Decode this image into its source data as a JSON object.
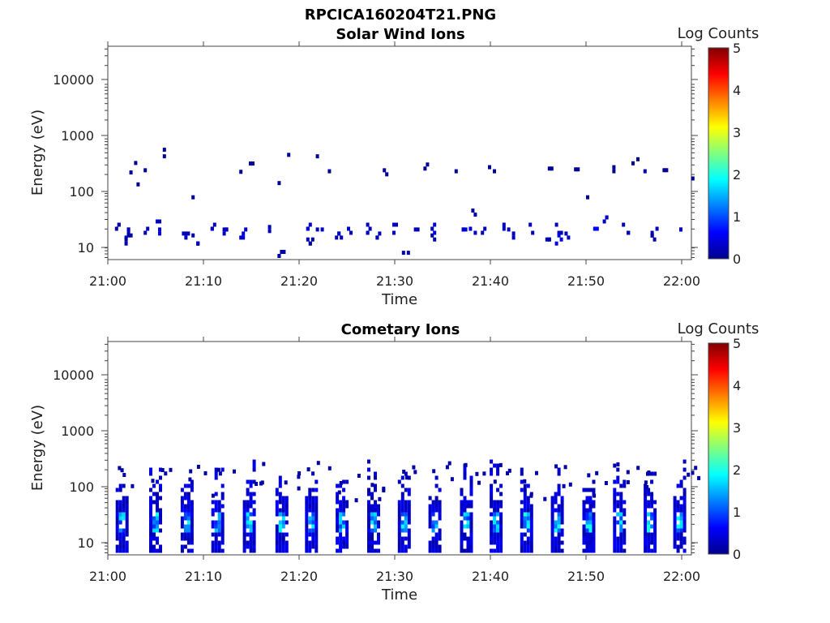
{
  "figure_title": "RPCICA160204T21.PNG",
  "chart_data": [
    {
      "type": "heatmap",
      "title": "Solar Wind Ions",
      "xlabel": "Time",
      "ylabel": "Energy (eV)",
      "x_tick_labels": [
        "21:00",
        "21:10",
        "21:20",
        "21:30",
        "21:40",
        "21:50",
        "22:00"
      ],
      "y_tick_labels": [
        "10",
        "100",
        "1000",
        "10000"
      ],
      "y_scale": "log",
      "xlim": [
        "21:00",
        "22:00"
      ],
      "ylim_eV": [
        5.5,
        45000
      ],
      "colorbar": {
        "label": "Log Counts",
        "range": [
          0,
          5
        ],
        "tick_labels": [
          "0",
          "1",
          "2",
          "3",
          "4",
          "5"
        ]
      },
      "cells": [
        {
          "t": "21:01",
          "e": 22,
          "v": 0.2
        },
        {
          "t": "21:02",
          "e": 18,
          "v": 0.3
        },
        {
          "t": "21:02",
          "e": 14,
          "v": 0.2
        },
        {
          "t": "21:02",
          "e": 200,
          "v": 0.1
        },
        {
          "t": "21:03",
          "e": 170,
          "v": 0.1
        },
        {
          "t": "21:03",
          "e": 420,
          "v": 0.1
        },
        {
          "t": "21:04",
          "e": 260,
          "v": 0.1
        },
        {
          "t": "21:04",
          "e": 22,
          "v": 0.3
        },
        {
          "t": "21:05",
          "e": 18,
          "v": 0.5
        },
        {
          "t": "21:05",
          "e": 30,
          "v": 0.3
        },
        {
          "t": "21:06",
          "e": 620,
          "v": 0.1
        },
        {
          "t": "21:06",
          "e": 470,
          "v": 0.1
        },
        {
          "t": "21:08",
          "e": 18,
          "v": 0.3
        },
        {
          "t": "21:09",
          "e": 70,
          "v": 0.1
        },
        {
          "t": "21:09",
          "e": 14,
          "v": 0.2
        },
        {
          "t": "21:11",
          "e": 22,
          "v": 0.3
        },
        {
          "t": "21:12",
          "e": 18,
          "v": 0.3
        },
        {
          "t": "21:14",
          "e": 18,
          "v": 0.4
        },
        {
          "t": "21:14",
          "e": 290,
          "v": 0.1
        },
        {
          "t": "21:15",
          "e": 410,
          "v": 0.1
        },
        {
          "t": "21:17",
          "e": 20,
          "v": 0.3
        },
        {
          "t": "21:18",
          "e": 7,
          "v": 0.2
        },
        {
          "t": "21:18",
          "e": 180,
          "v": 0.1
        },
        {
          "t": "21:19",
          "e": 420,
          "v": 0.1
        },
        {
          "t": "21:21",
          "e": 22,
          "v": 0.4
        },
        {
          "t": "21:21",
          "e": 14,
          "v": 0.2
        },
        {
          "t": "21:22",
          "e": 18,
          "v": 0.3
        },
        {
          "t": "21:22",
          "e": 470,
          "v": 0.1
        },
        {
          "t": "21:23",
          "e": 250,
          "v": 0.1
        },
        {
          "t": "21:24",
          "e": 18,
          "v": 0.3
        },
        {
          "t": "21:25",
          "e": 22,
          "v": 0.4
        },
        {
          "t": "21:27",
          "e": 22,
          "v": 0.3
        },
        {
          "t": "21:28",
          "e": 18,
          "v": 0.3
        },
        {
          "t": "21:29",
          "e": 260,
          "v": 0.1
        },
        {
          "t": "21:30",
          "e": 22,
          "v": 0.3
        },
        {
          "t": "21:31",
          "e": 8,
          "v": 0.2
        },
        {
          "t": "21:32",
          "e": 18,
          "v": 0.3
        },
        {
          "t": "21:33",
          "e": 280,
          "v": 0.1
        },
        {
          "t": "21:34",
          "e": 22,
          "v": 0.4
        },
        {
          "t": "21:34",
          "e": 14,
          "v": 0.2
        },
        {
          "t": "21:36",
          "e": 250,
          "v": 0.1
        },
        {
          "t": "21:37",
          "e": 18,
          "v": 0.4
        },
        {
          "t": "21:38",
          "e": 22,
          "v": 0.4
        },
        {
          "t": "21:38",
          "e": 40,
          "v": 0.2
        },
        {
          "t": "21:39",
          "e": 22,
          "v": 0.3
        },
        {
          "t": "21:40",
          "e": 250,
          "v": 0.1
        },
        {
          "t": "21:41",
          "e": 22,
          "v": 0.3
        },
        {
          "t": "21:42",
          "e": 18,
          "v": 0.3
        },
        {
          "t": "21:44",
          "e": 22,
          "v": 0.3
        },
        {
          "t": "21:46",
          "e": 14,
          "v": 0.2
        },
        {
          "t": "21:46",
          "e": 280,
          "v": 0.1
        },
        {
          "t": "21:47",
          "e": 22,
          "v": 0.3
        },
        {
          "t": "21:47",
          "e": 14,
          "v": 0.5
        },
        {
          "t": "21:48",
          "e": 18,
          "v": 0.3
        },
        {
          "t": "21:49",
          "e": 270,
          "v": 0.1
        },
        {
          "t": "21:50",
          "e": 70,
          "v": 0.1
        },
        {
          "t": "21:51",
          "e": 22,
          "v": 0.6
        },
        {
          "t": "21:52",
          "e": 30,
          "v": 0.3
        },
        {
          "t": "21:53",
          "e": 250,
          "v": 0.1
        },
        {
          "t": "21:54",
          "e": 22,
          "v": 0.3
        },
        {
          "t": "21:55",
          "e": 350,
          "v": 0.1
        },
        {
          "t": "21:56",
          "e": 250,
          "v": 0.2
        },
        {
          "t": "21:57",
          "e": 22,
          "v": 0.3
        },
        {
          "t": "21:57",
          "e": 14,
          "v": 0.2
        },
        {
          "t": "21:58",
          "e": 220,
          "v": 0.1
        },
        {
          "t": "22:00",
          "e": 18,
          "v": 0.3
        },
        {
          "t": "22:01",
          "e": 155,
          "v": 0.1
        }
      ]
    },
    {
      "type": "heatmap",
      "title": "Cometary Ions",
      "xlabel": "Time",
      "ylabel": "Energy (eV)",
      "x_tick_labels": [
        "21:00",
        "21:10",
        "21:20",
        "21:30",
        "21:40",
        "21:50",
        "22:00"
      ],
      "y_tick_labels": [
        "10",
        "100",
        "1000",
        "10000"
      ],
      "y_scale": "log",
      "xlim": [
        "21:00",
        "22:00"
      ],
      "ylim_eV": [
        5.5,
        45000
      ],
      "colorbar": {
        "label": "Log Counts",
        "range": [
          0,
          5
        ],
        "tick_labels": [
          "0",
          "1",
          "2",
          "3",
          "4",
          "5"
        ]
      },
      "bursts": [
        "21:01.5",
        "21:05",
        "21:08.3",
        "21:11.5",
        "21:14.8",
        "21:18.2",
        "21:21.3",
        "21:24.5",
        "21:27.8",
        "21:31",
        "21:34.2",
        "21:37.5",
        "21:40.6",
        "21:43.8",
        "21:47",
        "21:50.3",
        "21:53.5",
        "21:56.7",
        "21:59.8"
      ],
      "burst_profile": {
        "peak_energy_eV": [
          12,
          30
        ],
        "peak_log_counts": 2.0,
        "max_energy_eV": 300
      }
    }
  ]
}
